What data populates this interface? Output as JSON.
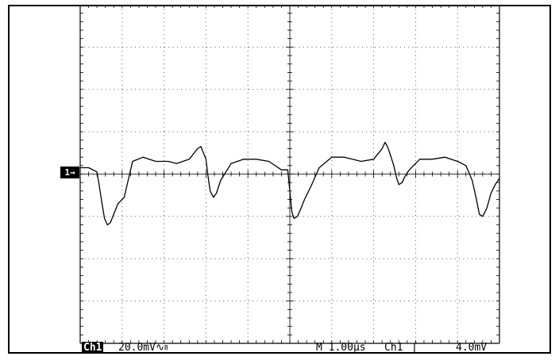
{
  "scope": {
    "channel_marker": "1→",
    "readout": {
      "channel": "Ch1",
      "scale": "20.0mV",
      "bw_label": "B",
      "timebase": "M 1.00µs",
      "trigger_channel": "Ch1",
      "trigger_slope": "rising",
      "trigger_level": "4.0mV"
    }
  },
  "chart_data": {
    "type": "line",
    "title": "",
    "xlabel": "",
    "ylabel": "",
    "units": {
      "x": "µs",
      "y": "mV"
    },
    "xlim": [
      0,
      10
    ],
    "ylim": [
      -80,
      80
    ],
    "grid": true,
    "divisions": {
      "x": 10,
      "y": 8
    },
    "series": [
      {
        "x": [
          0,
          0.2,
          0.4,
          0.45,
          0.52,
          0.58,
          0.65,
          0.72,
          0.8,
          0.9,
          1.05,
          1.25,
          1.5,
          1.8,
          2.1,
          2.3,
          2.6,
          2.8,
          2.88,
          2.94,
          3.0,
          3.05,
          3.1,
          3.18,
          3.25,
          3.35,
          3.6,
          3.9,
          4.2,
          4.5,
          4.8,
          4.95,
          5.0,
          5.05,
          5.1,
          5.18,
          5.25,
          5.35,
          5.5,
          5.7,
          6.0,
          6.3,
          6.7,
          7.0,
          7.2,
          7.27,
          7.33,
          7.4,
          7.48,
          7.55,
          7.6,
          7.68,
          7.75,
          7.85,
          8.1,
          8.4,
          8.7,
          9.0,
          9.2,
          9.35,
          9.45,
          9.52,
          9.6,
          9.7,
          9.8,
          9.9,
          10.0
        ],
        "y": [
          3,
          3,
          1,
          -5,
          -14,
          -21,
          -24,
          -23,
          -19,
          -14,
          -11,
          6,
          8,
          6,
          6,
          5,
          7,
          12,
          13,
          10,
          7,
          -1,
          -8,
          -11,
          -9,
          -3,
          5,
          7,
          7,
          6,
          2,
          2,
          -8,
          -18,
          -21,
          -20,
          -17,
          -12,
          -6,
          3,
          8,
          8,
          6,
          7,
          12,
          15,
          13,
          9,
          4,
          -2,
          -5,
          -4,
          -1,
          2,
          7,
          7,
          8,
          6,
          4,
          -3,
          -12,
          -19,
          -20,
          -16,
          -9,
          -5,
          -2
        ]
      }
    ]
  }
}
